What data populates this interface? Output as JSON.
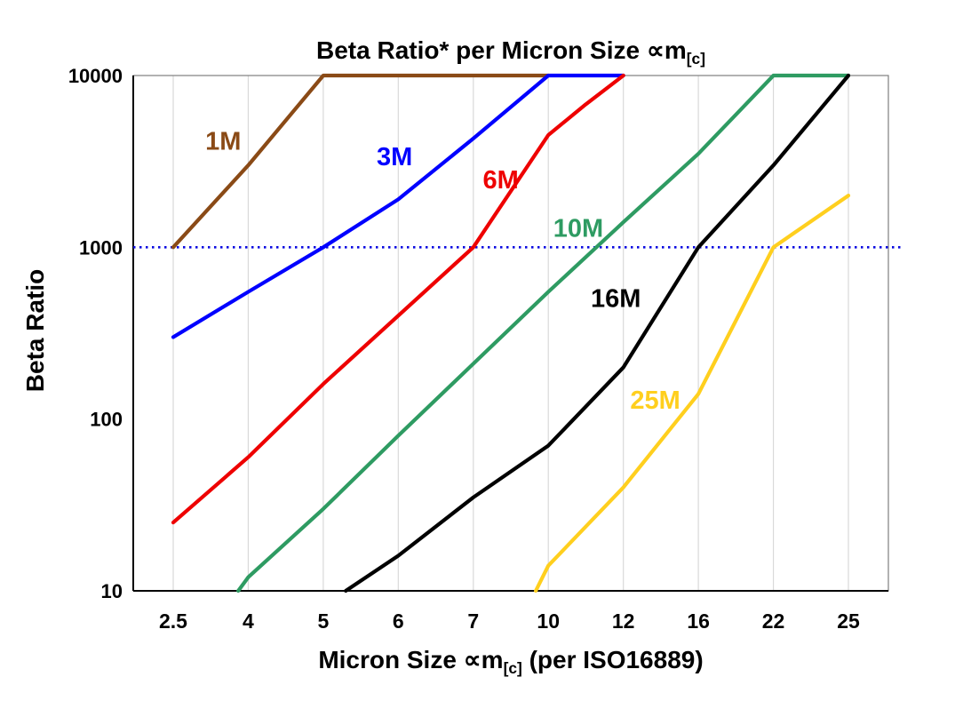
{
  "title": {
    "main": "Beta Ratio* per Micron Size ∝m",
    "sub": "[c]"
  },
  "y_axis": {
    "label": "Beta Ratio",
    "ticks": [
      10,
      100,
      1000,
      10000
    ]
  },
  "x_axis": {
    "label_main": "Micron Size ∝m",
    "label_sub": "[c]",
    "label_suffix": " (per ISO16889)"
  },
  "threshold": {
    "value": 1000,
    "color": "#0a0ae0",
    "style": "dotted"
  },
  "colors": {
    "grid": "#d9d9d9",
    "border": "#7f7f7f",
    "axis": "#000000",
    "background": "#ffffff",
    "tick_text": "#000000"
  },
  "chart_data": {
    "type": "line",
    "x_scale": "categorical",
    "y_scale": "log",
    "ylim": [
      10,
      10000
    ],
    "categories": [
      2.5,
      4,
      5,
      6,
      7,
      10,
      12,
      16,
      22,
      25
    ],
    "title": "Beta Ratio* per Micron Size ∝m[c]",
    "xlabel": "Micron Size ∝m[c] (per ISO16889)",
    "ylabel": "Beta Ratio",
    "grid": "vertical-only",
    "legend": "inline-labels",
    "series": [
      {
        "name": "1M",
        "color": "#8a4a16",
        "label_at": [
          3.5,
          3700
        ],
        "points": [
          [
            2.5,
            1000
          ],
          [
            4,
            3000
          ],
          [
            5,
            10000
          ],
          [
            10,
            10000
          ]
        ]
      },
      {
        "name": "3M",
        "color": "#0000ff",
        "label_at": [
          5.95,
          3000
        ],
        "points": [
          [
            2.5,
            300
          ],
          [
            4,
            550
          ],
          [
            5,
            1000
          ],
          [
            6,
            1900
          ],
          [
            7,
            4300
          ],
          [
            10,
            10000
          ],
          [
            12,
            10000
          ]
        ]
      },
      {
        "name": "6M",
        "color": "#ee0000",
        "label_at": [
          8.1,
          2200
        ],
        "points": [
          [
            2.5,
            25
          ],
          [
            4,
            60
          ],
          [
            5,
            160
          ],
          [
            6,
            400
          ],
          [
            7,
            1000
          ],
          [
            10,
            4500
          ],
          [
            11,
            6800
          ],
          [
            12,
            10000
          ]
        ]
      },
      {
        "name": "10M",
        "color": "#2e9b62",
        "label_at": [
          10.8,
          1150
        ],
        "points": [
          [
            3.8,
            10
          ],
          [
            4,
            12
          ],
          [
            5,
            30
          ],
          [
            6,
            80
          ],
          [
            7,
            210
          ],
          [
            10,
            550
          ],
          [
            12,
            1400
          ],
          [
            16,
            3500
          ],
          [
            22,
            10000
          ],
          [
            25,
            10000
          ]
        ]
      },
      {
        "name": "16M",
        "color": "#000000",
        "label_at": [
          11.8,
          450
        ],
        "points": [
          [
            5.3,
            10
          ],
          [
            6,
            16
          ],
          [
            7,
            35
          ],
          [
            10,
            70
          ],
          [
            12,
            200
          ],
          [
            16,
            1000
          ],
          [
            22,
            3000
          ],
          [
            25,
            10000
          ]
        ]
      },
      {
        "name": "25M",
        "color": "#ffcf1e",
        "label_at": [
          13.7,
          115
        ],
        "points": [
          [
            9.5,
            10
          ],
          [
            10,
            14
          ],
          [
            12,
            40
          ],
          [
            16,
            140
          ],
          [
            22,
            1000
          ],
          [
            25,
            2000
          ]
        ]
      }
    ]
  }
}
